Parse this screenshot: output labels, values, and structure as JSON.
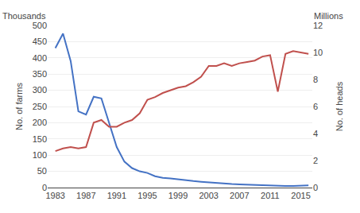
{
  "chart_data": {
    "type": "line",
    "x": [
      1983,
      1984,
      1985,
      1986,
      1987,
      1988,
      1989,
      1990,
      1991,
      1992,
      1993,
      1994,
      1995,
      1996,
      1997,
      1998,
      1999,
      2000,
      2001,
      2002,
      2003,
      2004,
      2005,
      2006,
      2007,
      2008,
      2009,
      2010,
      2011,
      2012,
      2013,
      2014,
      2015,
      2016
    ],
    "xlim": [
      1982,
      2016.5
    ],
    "xticks": [
      1983,
      1987,
      1991,
      1995,
      1999,
      2003,
      2007,
      2011,
      2015
    ],
    "ylabel": "No. of farms",
    "y2label": "No. of heads",
    "annotations": [
      "Thousands",
      "Millions"
    ],
    "ylim": [
      0,
      500
    ],
    "yticks": [
      0,
      50,
      100,
      150,
      200,
      250,
      300,
      350,
      400,
      450,
      500
    ],
    "y2lim": [
      0,
      12
    ],
    "y2ticks": [
      0,
      2,
      4,
      6,
      8,
      10,
      12
    ],
    "grid": true,
    "series": [
      {
        "color": "#4472C4",
        "values": [
          430,
          475,
          390,
          235,
          225,
          280,
          275,
          200,
          125,
          80,
          60,
          50,
          45,
          35,
          30,
          28,
          25,
          22,
          20,
          18,
          16,
          14,
          12,
          11,
          10,
          9,
          8,
          7,
          6,
          5,
          5,
          5,
          6,
          7
        ]
      },
      {
        "color": "#C0504D",
        "axis": "y2",
        "values": [
          2.7,
          2.9,
          3.0,
          2.9,
          3.0,
          4.8,
          5.0,
          4.5,
          4.5,
          4.8,
          5.0,
          5.5,
          6.5,
          6.7,
          7.0,
          7.2,
          7.4,
          7.5,
          7.8,
          8.2,
          9.0,
          9.0,
          9.2,
          9.0,
          9.2,
          9.3,
          9.4,
          9.7,
          9.8,
          7.1,
          9.9,
          10.1,
          10.0,
          9.9
        ]
      }
    ]
  }
}
